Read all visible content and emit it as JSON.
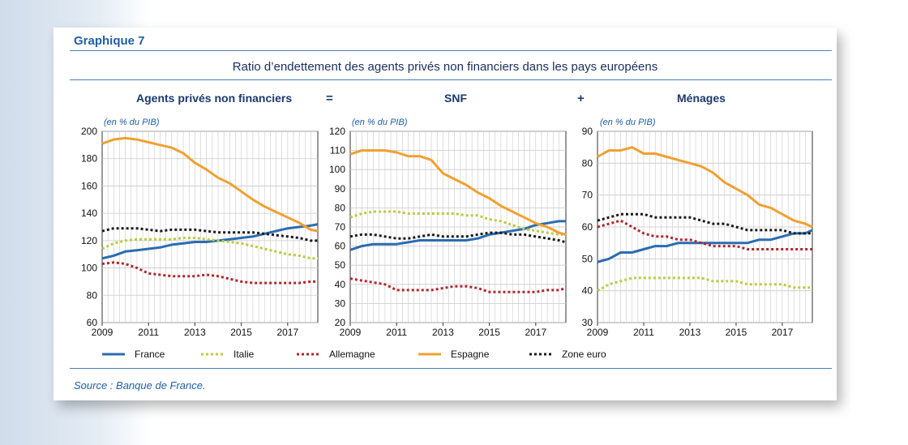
{
  "header": {
    "figure_label": "Graphique 7",
    "title": "Ratio d’endettement des agents privés non financiers dans les pays européens",
    "equal_sign": "=",
    "plus_sign": "+",
    "source": "Source : Banque de France."
  },
  "colors": {
    "France": "#2b6cb0",
    "Italie": "#b9cc3e",
    "Allemagne": "#b0272e",
    "Espagne": "#f0a030",
    "Zone euro": "#1a1a1a"
  },
  "legend": [
    {
      "name": "France",
      "style": "solid"
    },
    {
      "name": "Italie",
      "style": "dotted"
    },
    {
      "name": "Allemagne",
      "style": "dotted"
    },
    {
      "name": "Espagne",
      "style": "solid"
    },
    {
      "name": "Zone euro",
      "style": "dotted"
    }
  ],
  "chart_data": [
    {
      "type": "line",
      "title": "Agents privés non financiers",
      "ylabel": "(en % du PIB)",
      "ylim": [
        60,
        200
      ],
      "yticks": [
        60,
        80,
        100,
        120,
        140,
        160,
        180,
        200
      ],
      "xlim": [
        2009,
        2018.3
      ],
      "xticks": [
        2009,
        2011,
        2013,
        2015,
        2017
      ],
      "grid": true,
      "series": [
        {
          "name": "France",
          "x": [
            2009,
            2009.5,
            2010,
            2010.5,
            2011,
            2011.5,
            2012,
            2012.5,
            2013,
            2013.5,
            2014,
            2014.5,
            2015,
            2015.5,
            2016,
            2016.5,
            2017,
            2017.5,
            2018,
            2018.3
          ],
          "y": [
            107,
            109,
            112,
            113,
            114,
            115,
            117,
            118,
            119,
            119,
            120,
            121,
            122,
            123,
            125,
            127,
            129,
            130,
            131,
            132
          ]
        },
        {
          "name": "Italie",
          "x": [
            2009,
            2009.5,
            2010,
            2010.5,
            2011,
            2011.5,
            2012,
            2012.5,
            2013,
            2013.5,
            2014,
            2014.5,
            2015,
            2015.5,
            2016,
            2016.5,
            2017,
            2017.5,
            2018,
            2018.3
          ],
          "y": [
            114,
            118,
            120,
            121,
            121,
            121,
            121,
            122,
            122,
            121,
            120,
            119,
            118,
            116,
            114,
            112,
            110,
            109,
            107,
            107
          ]
        },
        {
          "name": "Allemagne",
          "x": [
            2009,
            2009.5,
            2010,
            2010.5,
            2011,
            2011.5,
            2012,
            2012.5,
            2013,
            2013.5,
            2014,
            2014.5,
            2015,
            2015.5,
            2016,
            2016.5,
            2017,
            2017.5,
            2018,
            2018.3
          ],
          "y": [
            103,
            104,
            103,
            100,
            96,
            95,
            94,
            94,
            94,
            95,
            94,
            92,
            90,
            89,
            89,
            89,
            89,
            89,
            90,
            90
          ]
        },
        {
          "name": "Espagne",
          "x": [
            2009,
            2009.5,
            2010,
            2010.5,
            2011,
            2011.5,
            2012,
            2012.5,
            2013,
            2013.5,
            2014,
            2014.5,
            2015,
            2015.5,
            2016,
            2016.5,
            2017,
            2017.5,
            2018,
            2018.3
          ],
          "y": [
            191,
            194,
            195,
            194,
            192,
            190,
            188,
            184,
            177,
            172,
            166,
            162,
            156,
            150,
            145,
            141,
            137,
            133,
            128,
            127
          ]
        },
        {
          "name": "Zone euro",
          "x": [
            2009,
            2009.5,
            2010,
            2010.5,
            2011,
            2011.5,
            2012,
            2012.5,
            2013,
            2013.5,
            2014,
            2014.5,
            2015,
            2015.5,
            2016,
            2016.5,
            2017,
            2017.5,
            2018,
            2018.3
          ],
          "y": [
            127,
            129,
            129,
            129,
            128,
            127,
            128,
            128,
            128,
            127,
            126,
            126,
            126,
            126,
            125,
            124,
            123,
            122,
            120,
            120
          ]
        }
      ]
    },
    {
      "type": "line",
      "title": "SNF",
      "ylabel": "(en % du PIB)",
      "ylim": [
        20,
        120
      ],
      "yticks": [
        20,
        30,
        40,
        50,
        60,
        70,
        80,
        90,
        100,
        110,
        120
      ],
      "xlim": [
        2009,
        2018.3
      ],
      "xticks": [
        2009,
        2011,
        2013,
        2015,
        2017
      ],
      "grid": true,
      "series": [
        {
          "name": "France",
          "x": [
            2009,
            2009.5,
            2010,
            2010.5,
            2011,
            2011.5,
            2012,
            2012.5,
            2013,
            2013.5,
            2014,
            2014.5,
            2015,
            2015.5,
            2016,
            2016.5,
            2017,
            2017.5,
            2018,
            2018.3
          ],
          "y": [
            58,
            60,
            61,
            61,
            61,
            62,
            63,
            63,
            63,
            63,
            63,
            64,
            66,
            67,
            68,
            69,
            71,
            72,
            73,
            73
          ]
        },
        {
          "name": "Italie",
          "x": [
            2009,
            2009.5,
            2010,
            2010.5,
            2011,
            2011.5,
            2012,
            2012.5,
            2013,
            2013.5,
            2014,
            2014.5,
            2015,
            2015.5,
            2016,
            2016.5,
            2017,
            2017.5,
            2018,
            2018.3
          ],
          "y": [
            75,
            77,
            78,
            78,
            78,
            77,
            77,
            77,
            77,
            77,
            76,
            76,
            74,
            73,
            71,
            69,
            68,
            67,
            66,
            66
          ]
        },
        {
          "name": "Allemagne",
          "x": [
            2009,
            2009.5,
            2010,
            2010.5,
            2011,
            2011.5,
            2012,
            2012.5,
            2013,
            2013.5,
            2014,
            2014.5,
            2015,
            2015.5,
            2016,
            2016.5,
            2017,
            2017.5,
            2018,
            2018.3
          ],
          "y": [
            43,
            42,
            41,
            40,
            37,
            37,
            37,
            37,
            38,
            39,
            39,
            38,
            36,
            36,
            36,
            36,
            36,
            37,
            37,
            38
          ]
        },
        {
          "name": "Espagne",
          "x": [
            2009,
            2009.5,
            2010,
            2010.5,
            2011,
            2011.5,
            2012,
            2012.5,
            2013,
            2013.5,
            2014,
            2014.5,
            2015,
            2015.5,
            2016,
            2016.5,
            2017,
            2017.5,
            2018,
            2018.3
          ],
          "y": [
            108,
            110,
            110,
            110,
            109,
            107,
            107,
            105,
            98,
            95,
            92,
            88,
            85,
            81,
            78,
            75,
            72,
            70,
            67,
            66
          ]
        },
        {
          "name": "Zone euro",
          "x": [
            2009,
            2009.5,
            2010,
            2010.5,
            2011,
            2011.5,
            2012,
            2012.5,
            2013,
            2013.5,
            2014,
            2014.5,
            2015,
            2015.5,
            2016,
            2016.5,
            2017,
            2017.5,
            2018,
            2018.3
          ],
          "y": [
            65,
            66,
            66,
            65,
            64,
            64,
            65,
            66,
            65,
            65,
            65,
            66,
            67,
            67,
            66,
            66,
            65,
            64,
            63,
            62
          ]
        }
      ]
    },
    {
      "type": "line",
      "title": "Ménages",
      "ylabel": "(en % du PIB)",
      "ylim": [
        30,
        90
      ],
      "yticks": [
        30,
        40,
        50,
        60,
        70,
        80,
        90
      ],
      "xlim": [
        2009,
        2018.3
      ],
      "xticks": [
        2009,
        2011,
        2013,
        2015,
        2017
      ],
      "grid": true,
      "series": [
        {
          "name": "France",
          "x": [
            2009,
            2009.5,
            2010,
            2010.5,
            2011,
            2011.5,
            2012,
            2012.5,
            2013,
            2013.5,
            2014,
            2014.5,
            2015,
            2015.5,
            2016,
            2016.5,
            2017,
            2017.5,
            2018,
            2018.3
          ],
          "y": [
            49,
            50,
            52,
            52,
            53,
            54,
            54,
            55,
            55,
            55,
            55,
            55,
            55,
            55,
            56,
            56,
            57,
            58,
            58,
            59
          ]
        },
        {
          "name": "Italie",
          "x": [
            2009,
            2009.5,
            2010,
            2010.5,
            2011,
            2011.5,
            2012,
            2012.5,
            2013,
            2013.5,
            2014,
            2014.5,
            2015,
            2015.5,
            2016,
            2016.5,
            2017,
            2017.5,
            2018,
            2018.3
          ],
          "y": [
            40,
            42,
            43,
            44,
            44,
            44,
            44,
            44,
            44,
            44,
            43,
            43,
            43,
            42,
            42,
            42,
            42,
            41,
            41,
            41
          ]
        },
        {
          "name": "Allemagne",
          "x": [
            2009,
            2009.5,
            2010,
            2010.5,
            2011,
            2011.5,
            2012,
            2012.5,
            2013,
            2013.5,
            2014,
            2014.5,
            2015,
            2015.5,
            2016,
            2016.5,
            2017,
            2017.5,
            2018,
            2018.3
          ],
          "y": [
            60,
            61,
            62,
            60,
            58,
            57,
            57,
            56,
            56,
            55,
            54,
            54,
            54,
            53,
            53,
            53,
            53,
            53,
            53,
            53
          ]
        },
        {
          "name": "Espagne",
          "x": [
            2009,
            2009.5,
            2010,
            2010.5,
            2011,
            2011.5,
            2012,
            2012.5,
            2013,
            2013.5,
            2014,
            2014.5,
            2015,
            2015.5,
            2016,
            2016.5,
            2017,
            2017.5,
            2018,
            2018.3
          ],
          "y": [
            82,
            84,
            84,
            85,
            83,
            83,
            82,
            81,
            80,
            79,
            77,
            74,
            72,
            70,
            67,
            66,
            64,
            62,
            61,
            60
          ]
        },
        {
          "name": "Zone euro",
          "x": [
            2009,
            2009.5,
            2010,
            2010.5,
            2011,
            2011.5,
            2012,
            2012.5,
            2013,
            2013.5,
            2014,
            2014.5,
            2015,
            2015.5,
            2016,
            2016.5,
            2017,
            2017.5,
            2018,
            2018.3
          ],
          "y": [
            62,
            63,
            64,
            64,
            64,
            63,
            63,
            63,
            63,
            62,
            61,
            61,
            60,
            59,
            59,
            59,
            59,
            58,
            58,
            58
          ]
        }
      ]
    }
  ]
}
